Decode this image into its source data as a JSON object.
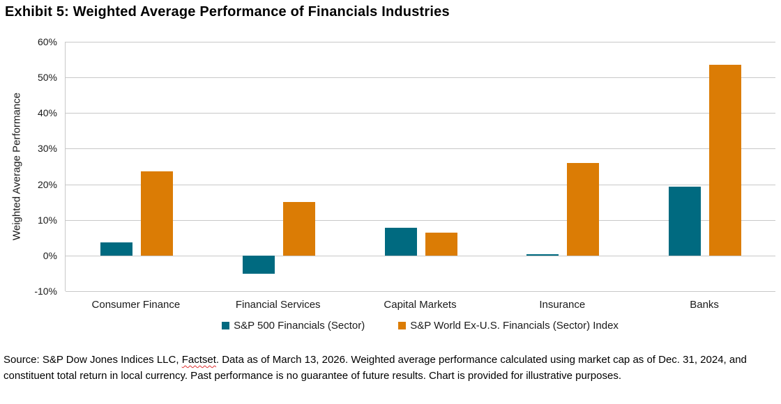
{
  "title": "Exhibit 5: Weighted Average Performance of Financials Industries",
  "footer": {
    "part1": "Source: S&P Dow Jones Indices LLC, ",
    "misspelled_word": "Factset",
    "part2": ". Data as of March 13, 2026. Weighted average performance calculated using market cap as of Dec. 31, 2024, and constituent total return in local currency. Past performance is no guarantee of future results. Chart is provided for illustrative purposes."
  },
  "colors": {
    "series1": "#006A80",
    "series2": "#DB7C05",
    "gridline": "#C8C8C8"
  },
  "chart_data": {
    "type": "bar",
    "title": "Exhibit 5: Weighted Average Performance of Financials Industries",
    "xlabel": "",
    "ylabel": "Weighted Average Performance",
    "ylim": [
      -10,
      60
    ],
    "ytick_step": 10,
    "ytick_labels": [
      "60%",
      "50%",
      "40%",
      "30%",
      "20%",
      "10%",
      "0%",
      "-10%"
    ],
    "grid": "horizontal",
    "legend_position": "bottom",
    "categories": [
      "Consumer Finance",
      "Financial Services",
      "Capital Markets",
      "Insurance",
      "Banks"
    ],
    "series": [
      {
        "name": "S&P 500 Financials (Sector)",
        "color": "#006A80",
        "values": [
          3.6,
          -5.1,
          7.7,
          0.3,
          19.4
        ]
      },
      {
        "name": "S&P World Ex-U.S. Financials (Sector) Index",
        "color": "#DB7C05",
        "values": [
          23.7,
          15.1,
          6.5,
          26.0,
          53.5
        ]
      }
    ]
  }
}
